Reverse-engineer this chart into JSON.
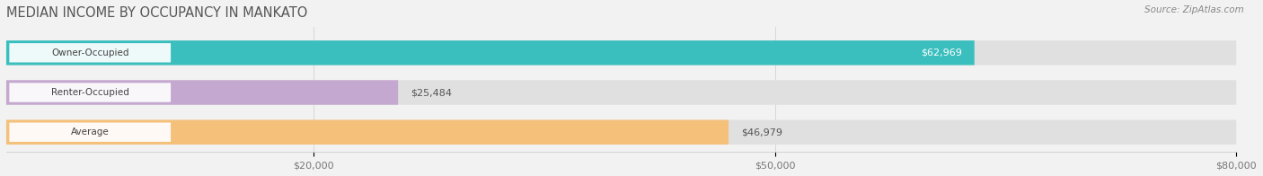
{
  "title": "MEDIAN INCOME BY OCCUPANCY IN MANKATO",
  "source": "Source: ZipAtlas.com",
  "categories": [
    "Owner-Occupied",
    "Renter-Occupied",
    "Average"
  ],
  "values": [
    62969,
    25484,
    46979
  ],
  "labels": [
    "$62,969",
    "$25,484",
    "$46,979"
  ],
  "bar_colors": [
    "#3bbfbe",
    "#c4a8d0",
    "#f5c07a"
  ],
  "bar_bg_color": "#e0e0e0",
  "xlim": [
    0,
    80000
  ],
  "xticks": [
    20000,
    50000,
    80000
  ],
  "xtick_labels": [
    "$20,000",
    "$50,000",
    "$80,000"
  ],
  "title_fontsize": 10.5,
  "source_fontsize": 7.5,
  "label_fontsize": 8,
  "cat_fontsize": 7.5,
  "bar_height": 0.62,
  "background_color": "#f2f2f2",
  "value_inside_threshold": 60000,
  "label_inside_color": "#ffffff",
  "label_outside_color": "#555555"
}
